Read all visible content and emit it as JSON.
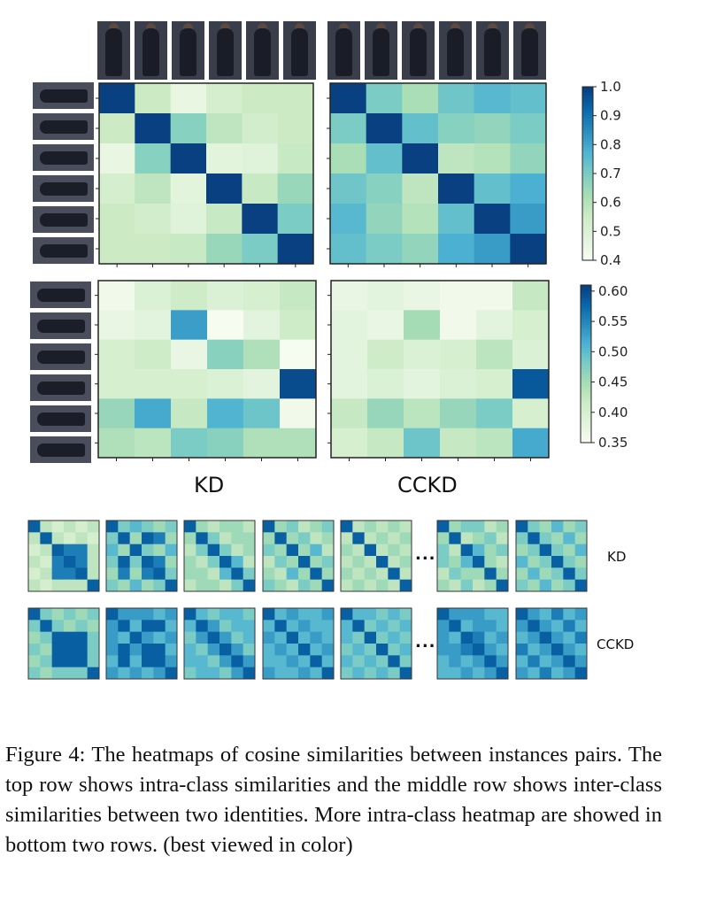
{
  "figure": {
    "column_labels": [
      "KD",
      "CCKD"
    ],
    "row_labels": [
      "KD",
      "CCKD"
    ],
    "ellipsis": "...",
    "caption": "Figure 4: The heatmaps of cosine similarities between instances pairs. The top row shows intra-class similarities and the middle row shows inter-class similarities between two identities. More intra-class heatmap are showed in bottom two rows. (best viewed in color)",
    "colors": {
      "low": "#f7fcf0",
      "mid": "#a8dcc0",
      "high": "#08306b",
      "colormap": "GnBu"
    }
  },
  "chart_data": [
    {
      "type": "heatmap",
      "name": "KD intra-class",
      "vmin": 0.4,
      "vmax": 1.0,
      "matrix": [
        [
          1.0,
          0.55,
          0.45,
          0.52,
          0.55,
          0.55
        ],
        [
          0.55,
          1.0,
          0.68,
          0.58,
          0.53,
          0.55
        ],
        [
          0.45,
          0.68,
          1.0,
          0.47,
          0.48,
          0.56
        ],
        [
          0.52,
          0.58,
          0.47,
          1.0,
          0.56,
          0.65
        ],
        [
          0.55,
          0.53,
          0.48,
          0.56,
          1.0,
          0.7
        ],
        [
          0.55,
          0.55,
          0.56,
          0.65,
          0.7,
          1.0
        ]
      ]
    },
    {
      "type": "heatmap",
      "name": "CCKD intra-class",
      "vmin": 0.4,
      "vmax": 1.0,
      "matrix": [
        [
          1.0,
          0.7,
          0.62,
          0.72,
          0.76,
          0.74
        ],
        [
          0.7,
          1.0,
          0.74,
          0.68,
          0.66,
          0.7
        ],
        [
          0.62,
          0.74,
          1.0,
          0.58,
          0.6,
          0.66
        ],
        [
          0.72,
          0.68,
          0.58,
          1.0,
          0.74,
          0.78
        ],
        [
          0.76,
          0.66,
          0.6,
          0.74,
          1.0,
          0.82
        ],
        [
          0.74,
          0.7,
          0.66,
          0.78,
          0.82,
          1.0
        ]
      ]
    },
    {
      "type": "heatmap",
      "name": "KD inter-class",
      "vmin": 0.35,
      "vmax": 0.61,
      "matrix": [
        [
          0.36,
          0.39,
          0.41,
          0.39,
          0.4,
          0.42
        ],
        [
          0.37,
          0.38,
          0.53,
          0.35,
          0.38,
          0.41
        ],
        [
          0.4,
          0.41,
          0.37,
          0.47,
          0.44,
          0.35
        ],
        [
          0.4,
          0.4,
          0.4,
          0.39,
          0.38,
          0.6
        ],
        [
          0.46,
          0.52,
          0.42,
          0.51,
          0.49,
          0.36
        ],
        [
          0.44,
          0.43,
          0.48,
          0.47,
          0.44,
          0.44
        ]
      ]
    },
    {
      "type": "heatmap",
      "name": "CCKD inter-class",
      "vmin": 0.35,
      "vmax": 0.61,
      "matrix": [
        [
          0.37,
          0.38,
          0.37,
          0.36,
          0.36,
          0.42
        ],
        [
          0.38,
          0.37,
          0.45,
          0.36,
          0.38,
          0.4
        ],
        [
          0.38,
          0.41,
          0.39,
          0.4,
          0.43,
          0.39
        ],
        [
          0.38,
          0.39,
          0.38,
          0.39,
          0.4,
          0.59
        ],
        [
          0.42,
          0.46,
          0.43,
          0.46,
          0.48,
          0.4
        ],
        [
          0.4,
          0.42,
          0.49,
          0.42,
          0.43,
          0.52
        ]
      ]
    }
  ],
  "colorbars": [
    {
      "ticks": [
        "1.0",
        "0.9",
        "0.8",
        "0.7",
        "0.6",
        "0.5",
        "0.4"
      ],
      "vmin": 0.4,
      "vmax": 1.0
    },
    {
      "ticks": [
        "0.60",
        "0.55",
        "0.50",
        "0.45",
        "0.40",
        "0.35"
      ],
      "vmin": 0.35,
      "vmax": 0.61
    }
  ],
  "small_heatmaps": {
    "kd": [
      [
        [
          0.9,
          0.3,
          0.2,
          0.3,
          0.2,
          0.3
        ],
        [
          0.3,
          0.9,
          0.3,
          0.2,
          0.3,
          0.2
        ],
        [
          0.2,
          0.3,
          0.9,
          0.8,
          0.8,
          0.3
        ],
        [
          0.3,
          0.2,
          0.8,
          0.9,
          0.8,
          0.3
        ],
        [
          0.2,
          0.3,
          0.8,
          0.8,
          0.9,
          0.3
        ],
        [
          0.3,
          0.2,
          0.3,
          0.3,
          0.3,
          0.9
        ]
      ],
      [
        [
          0.9,
          0.5,
          0.6,
          0.5,
          0.4,
          0.5
        ],
        [
          0.5,
          0.9,
          0.4,
          0.9,
          0.8,
          0.4
        ],
        [
          0.6,
          0.4,
          0.9,
          0.5,
          0.4,
          0.6
        ],
        [
          0.5,
          0.9,
          0.5,
          0.9,
          0.8,
          0.4
        ],
        [
          0.4,
          0.8,
          0.4,
          0.8,
          0.9,
          0.5
        ],
        [
          0.5,
          0.4,
          0.6,
          0.4,
          0.5,
          0.9
        ]
      ],
      [
        [
          0.9,
          0.4,
          0.3,
          0.4,
          0.4,
          0.3
        ],
        [
          0.4,
          0.9,
          0.5,
          0.3,
          0.4,
          0.4
        ],
        [
          0.3,
          0.5,
          0.9,
          0.5,
          0.3,
          0.4
        ],
        [
          0.4,
          0.3,
          0.5,
          0.9,
          0.6,
          0.3
        ],
        [
          0.4,
          0.4,
          0.3,
          0.6,
          0.9,
          0.5
        ],
        [
          0.3,
          0.4,
          0.4,
          0.3,
          0.5,
          0.9
        ]
      ],
      [
        [
          0.9,
          0.4,
          0.5,
          0.3,
          0.4,
          0.5
        ],
        [
          0.4,
          0.9,
          0.4,
          0.5,
          0.3,
          0.4
        ],
        [
          0.5,
          0.4,
          0.9,
          0.4,
          0.6,
          0.3
        ],
        [
          0.3,
          0.5,
          0.4,
          0.9,
          0.4,
          0.5
        ],
        [
          0.4,
          0.3,
          0.6,
          0.4,
          0.9,
          0.4
        ],
        [
          0.5,
          0.4,
          0.3,
          0.5,
          0.4,
          0.9
        ]
      ],
      [
        [
          0.9,
          0.3,
          0.4,
          0.3,
          0.4,
          0.3
        ],
        [
          0.3,
          0.9,
          0.3,
          0.4,
          0.3,
          0.4
        ],
        [
          0.4,
          0.3,
          0.9,
          0.3,
          0.4,
          0.3
        ],
        [
          0.3,
          0.4,
          0.3,
          0.9,
          0.3,
          0.4
        ],
        [
          0.4,
          0.3,
          0.4,
          0.3,
          0.9,
          0.3
        ],
        [
          0.3,
          0.4,
          0.3,
          0.4,
          0.3,
          0.9
        ]
      ],
      [
        [
          0.9,
          0.4,
          0.5,
          0.5,
          0.3,
          0.4
        ],
        [
          0.4,
          0.9,
          0.3,
          0.4,
          0.5,
          0.3
        ],
        [
          0.5,
          0.3,
          0.9,
          0.6,
          0.4,
          0.5
        ],
        [
          0.5,
          0.4,
          0.6,
          0.9,
          0.4,
          0.3
        ],
        [
          0.3,
          0.5,
          0.4,
          0.4,
          0.9,
          0.4
        ],
        [
          0.4,
          0.3,
          0.5,
          0.3,
          0.4,
          0.9
        ]
      ],
      [
        [
          0.9,
          0.5,
          0.4,
          0.6,
          0.4,
          0.5
        ],
        [
          0.5,
          0.9,
          0.5,
          0.4,
          0.6,
          0.4
        ],
        [
          0.4,
          0.5,
          0.9,
          0.5,
          0.4,
          0.6
        ],
        [
          0.6,
          0.4,
          0.5,
          0.9,
          0.5,
          0.4
        ],
        [
          0.4,
          0.6,
          0.4,
          0.5,
          0.9,
          0.5
        ],
        [
          0.5,
          0.4,
          0.6,
          0.4,
          0.5,
          0.9
        ]
      ]
    ],
    "cckd": [
      [
        [
          0.9,
          0.5,
          0.4,
          0.5,
          0.4,
          0.5
        ],
        [
          0.5,
          0.9,
          0.5,
          0.4,
          0.5,
          0.4
        ],
        [
          0.4,
          0.5,
          0.9,
          0.9,
          0.9,
          0.5
        ],
        [
          0.5,
          0.4,
          0.9,
          0.9,
          0.9,
          0.5
        ],
        [
          0.4,
          0.5,
          0.9,
          0.9,
          0.9,
          0.5
        ],
        [
          0.5,
          0.4,
          0.5,
          0.5,
          0.5,
          0.9
        ]
      ],
      [
        [
          0.9,
          0.7,
          0.7,
          0.7,
          0.6,
          0.7
        ],
        [
          0.7,
          0.9,
          0.6,
          0.9,
          0.9,
          0.6
        ],
        [
          0.7,
          0.6,
          0.9,
          0.7,
          0.6,
          0.7
        ],
        [
          0.7,
          0.9,
          0.7,
          0.9,
          0.9,
          0.6
        ],
        [
          0.6,
          0.9,
          0.6,
          0.9,
          0.9,
          0.7
        ],
        [
          0.7,
          0.6,
          0.7,
          0.6,
          0.7,
          0.9
        ]
      ],
      [
        [
          0.9,
          0.6,
          0.5,
          0.6,
          0.6,
          0.5
        ],
        [
          0.6,
          0.9,
          0.7,
          0.5,
          0.6,
          0.6
        ],
        [
          0.5,
          0.7,
          0.9,
          0.7,
          0.5,
          0.6
        ],
        [
          0.6,
          0.5,
          0.7,
          0.9,
          0.7,
          0.5
        ],
        [
          0.6,
          0.6,
          0.5,
          0.7,
          0.9,
          0.7
        ],
        [
          0.5,
          0.6,
          0.6,
          0.5,
          0.7,
          0.9
        ]
      ],
      [
        [
          0.9,
          0.6,
          0.7,
          0.6,
          0.6,
          0.7
        ],
        [
          0.6,
          0.9,
          0.6,
          0.7,
          0.6,
          0.6
        ],
        [
          0.7,
          0.6,
          0.9,
          0.6,
          0.7,
          0.6
        ],
        [
          0.6,
          0.7,
          0.6,
          0.9,
          0.6,
          0.7
        ],
        [
          0.6,
          0.6,
          0.7,
          0.6,
          0.9,
          0.6
        ],
        [
          0.7,
          0.6,
          0.6,
          0.7,
          0.6,
          0.9
        ]
      ],
      [
        [
          0.9,
          0.6,
          0.6,
          0.5,
          0.6,
          0.5
        ],
        [
          0.6,
          0.9,
          0.5,
          0.6,
          0.5,
          0.6
        ],
        [
          0.6,
          0.5,
          0.9,
          0.5,
          0.6,
          0.5
        ],
        [
          0.5,
          0.6,
          0.5,
          0.9,
          0.5,
          0.6
        ],
        [
          0.6,
          0.5,
          0.6,
          0.5,
          0.9,
          0.5
        ],
        [
          0.5,
          0.6,
          0.5,
          0.6,
          0.5,
          0.9
        ]
      ],
      [
        [
          0.9,
          0.7,
          0.7,
          0.7,
          0.6,
          0.6
        ],
        [
          0.7,
          0.9,
          0.6,
          0.7,
          0.7,
          0.6
        ],
        [
          0.7,
          0.6,
          0.9,
          0.8,
          0.6,
          0.7
        ],
        [
          0.7,
          0.7,
          0.8,
          0.9,
          0.7,
          0.6
        ],
        [
          0.6,
          0.7,
          0.6,
          0.7,
          0.9,
          0.7
        ],
        [
          0.6,
          0.6,
          0.7,
          0.6,
          0.7,
          0.9
        ]
      ],
      [
        [
          0.9,
          0.7,
          0.6,
          0.8,
          0.6,
          0.7
        ],
        [
          0.7,
          0.9,
          0.7,
          0.6,
          0.8,
          0.6
        ],
        [
          0.6,
          0.7,
          0.9,
          0.7,
          0.6,
          0.8
        ],
        [
          0.8,
          0.6,
          0.7,
          0.9,
          0.7,
          0.6
        ],
        [
          0.6,
          0.8,
          0.6,
          0.7,
          0.9,
          0.7
        ],
        [
          0.7,
          0.6,
          0.8,
          0.6,
          0.7,
          0.9
        ]
      ]
    ]
  }
}
